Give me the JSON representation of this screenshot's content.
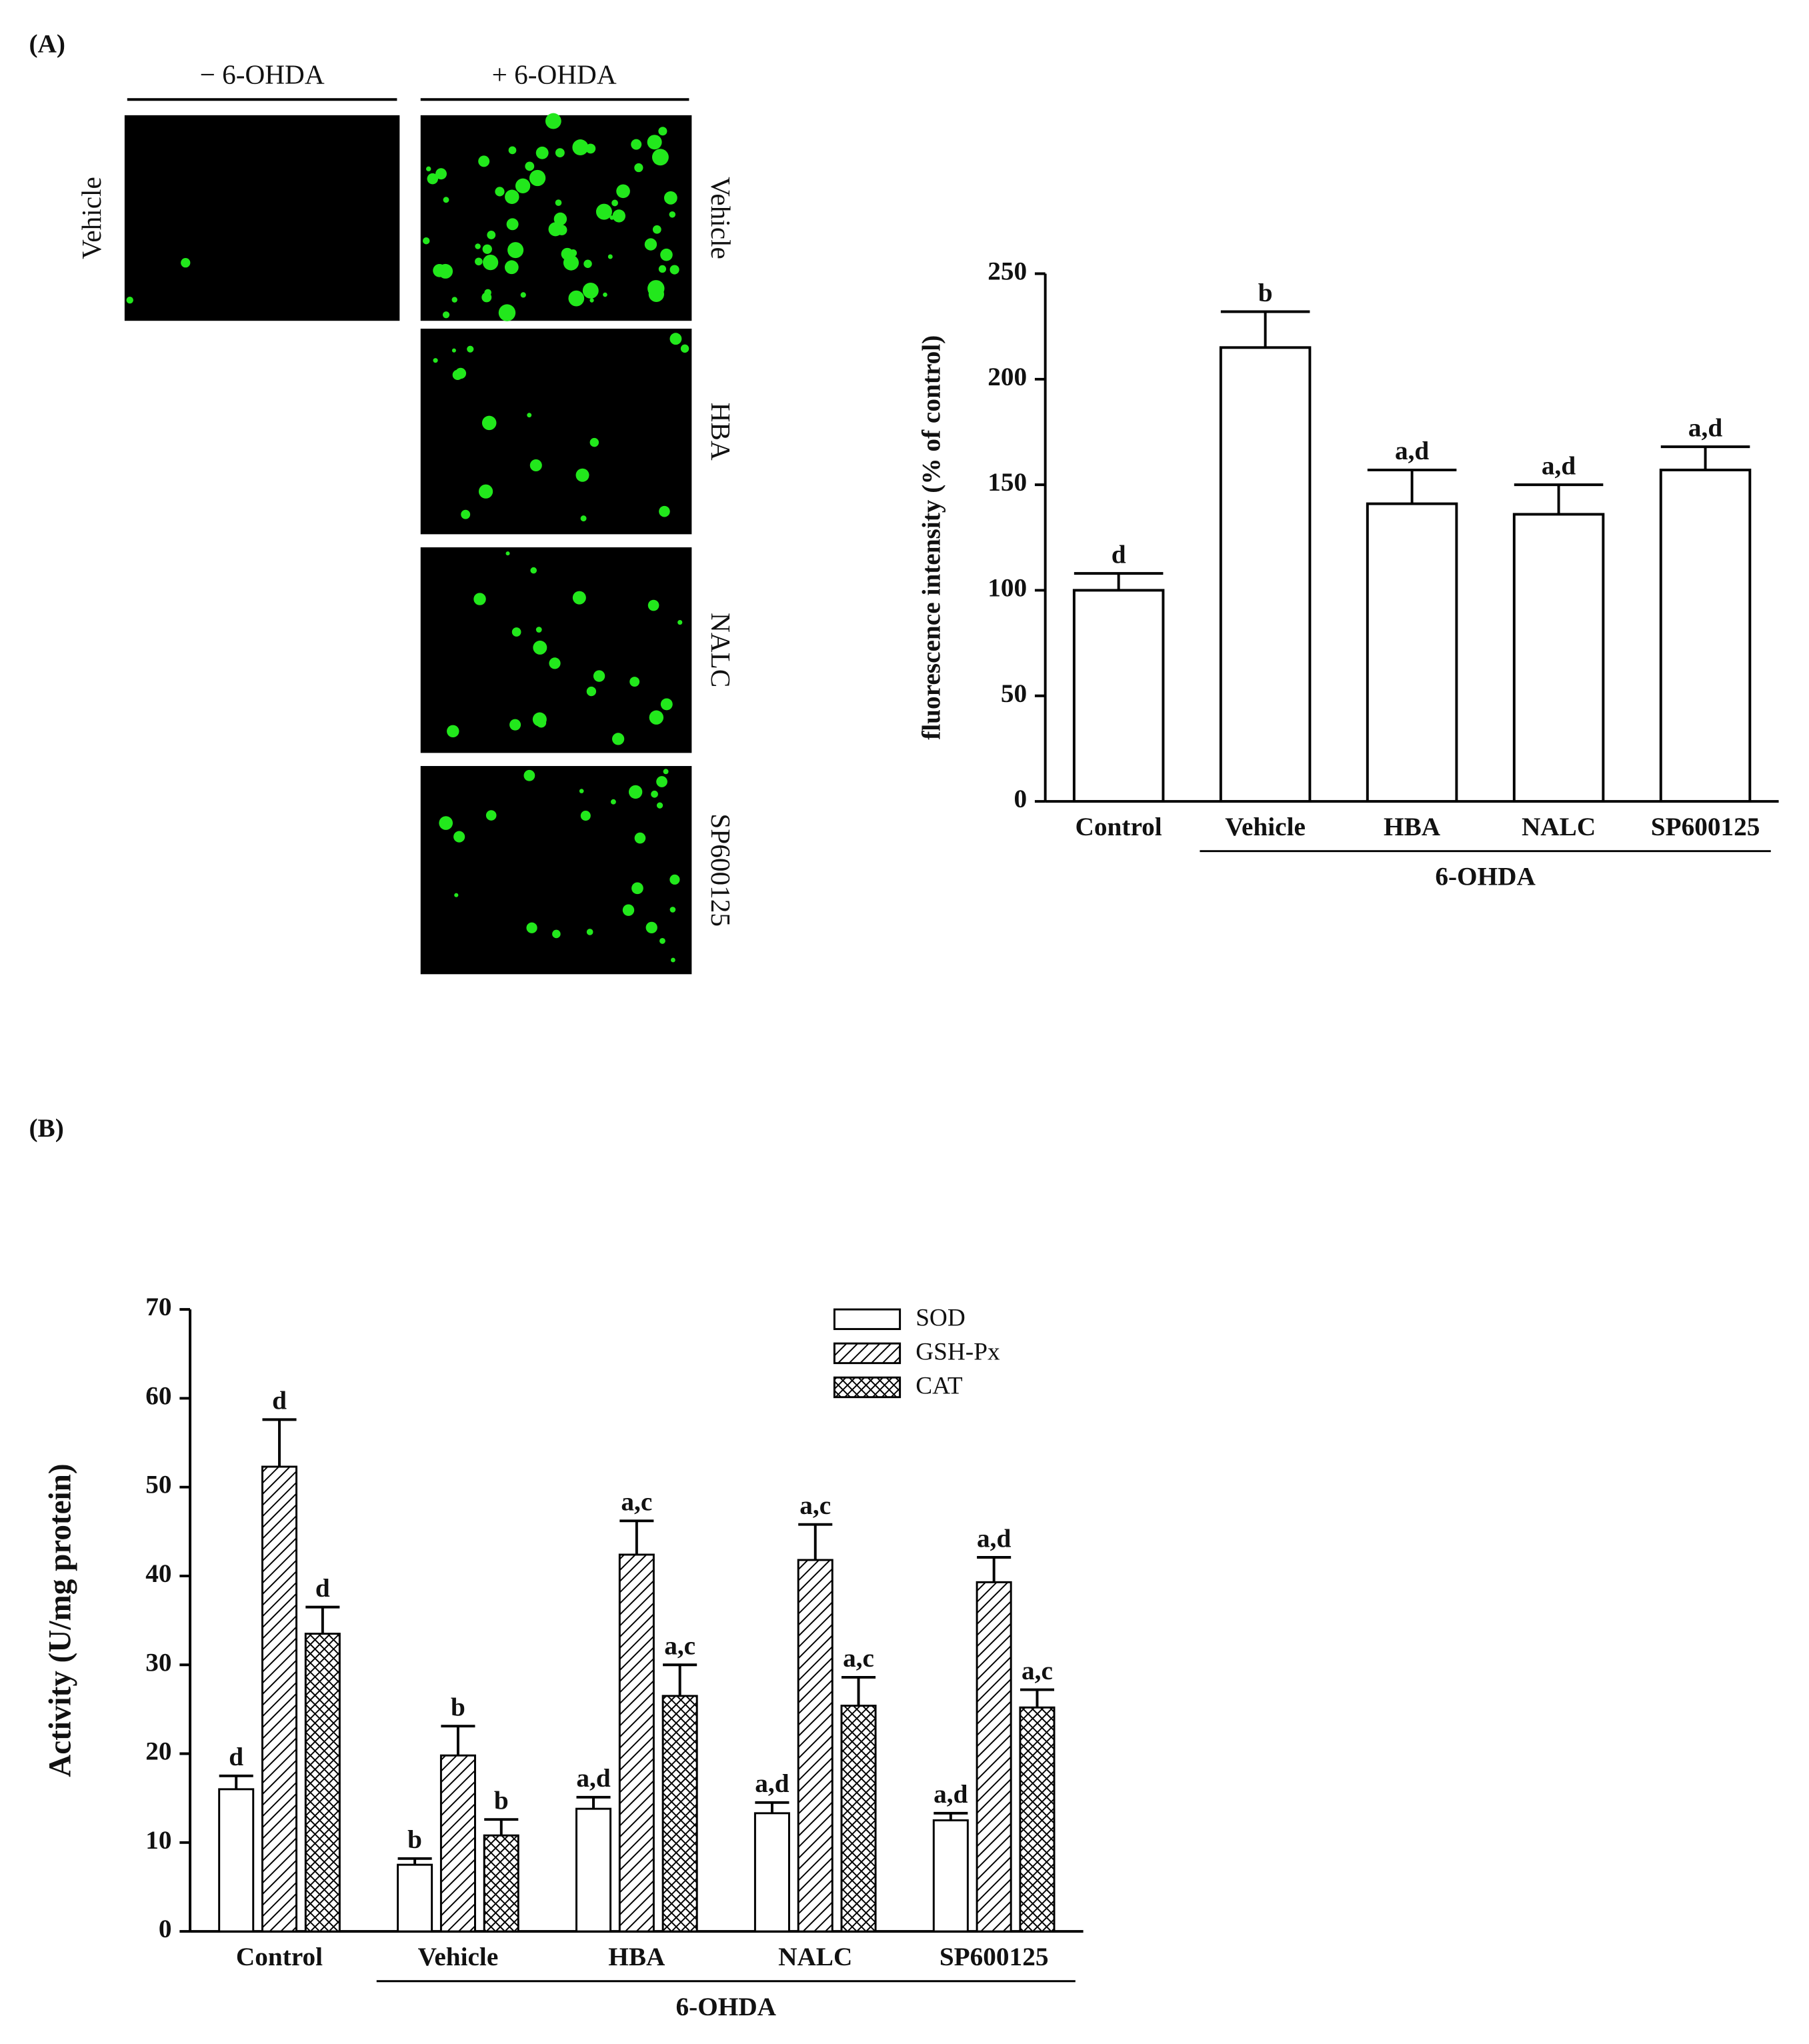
{
  "panel_a": {
    "label": "(A)",
    "group_labels": [
      "− 6-OHDA",
      "+ 6-OHDA"
    ],
    "image_labels": [
      "Vehicle",
      "Vehicle",
      "HBA",
      "NALC",
      "SP600125"
    ]
  },
  "panel_b": {
    "label": "(B)"
  },
  "chart_data": [
    {
      "type": "bar",
      "ylabel": "fluorescence intensity (% of control)",
      "categories": [
        "Control",
        "Vehicle",
        "HBA",
        "NALC",
        "SP600125"
      ],
      "values": [
        100,
        215,
        141,
        136,
        157
      ],
      "errors": [
        8,
        17,
        16,
        14,
        11
      ],
      "annotations": [
        "d",
        "b",
        "a,d",
        "a,d",
        "a,d"
      ],
      "x_group_label": "6-OHDA",
      "color": "#ffffff",
      "ylim": [
        0,
        250
      ],
      "yticks": [
        0,
        50,
        100,
        150,
        200,
        250
      ]
    },
    {
      "type": "grouped_bar",
      "ylabel": "Activity (U/mg protein)",
      "categories": [
        "Control",
        "Vehicle",
        "HBA",
        "NALC",
        "SP600125"
      ],
      "series": [
        {
          "name": "SOD",
          "pattern": "solid",
          "color": "#ffffff",
          "values": [
            16,
            7.5,
            13.8,
            13.3,
            12.5
          ],
          "errors": [
            1.5,
            0.7,
            1.3,
            1.2,
            0.8
          ],
          "annotations": [
            "d",
            "b",
            "a,d",
            "a,d",
            "a,d"
          ]
        },
        {
          "name": "GSH-Px",
          "pattern": "diagonal",
          "color": "#000000",
          "values": [
            52.3,
            19.8,
            42.4,
            41.8,
            39.3
          ],
          "errors": [
            5.3,
            3.3,
            3.8,
            4,
            2.8
          ],
          "annotations": [
            "d",
            "b",
            "a,c",
            "a,c",
            "a,d"
          ]
        },
        {
          "name": "CAT",
          "pattern": "crosshatch",
          "color": "#000000",
          "values": [
            33.5,
            10.8,
            26.5,
            25.4,
            25.2
          ],
          "errors": [
            3,
            1.8,
            3.5,
            3.2,
            2
          ],
          "annotations": [
            "d",
            "b",
            "a,c",
            "a,c",
            "a,c"
          ]
        }
      ],
      "x_group_label": "6-OHDA",
      "legend": "top-right",
      "ylim": [
        0,
        70
      ],
      "yticks": [
        0,
        10,
        20,
        30,
        40,
        50,
        60,
        70
      ]
    }
  ]
}
